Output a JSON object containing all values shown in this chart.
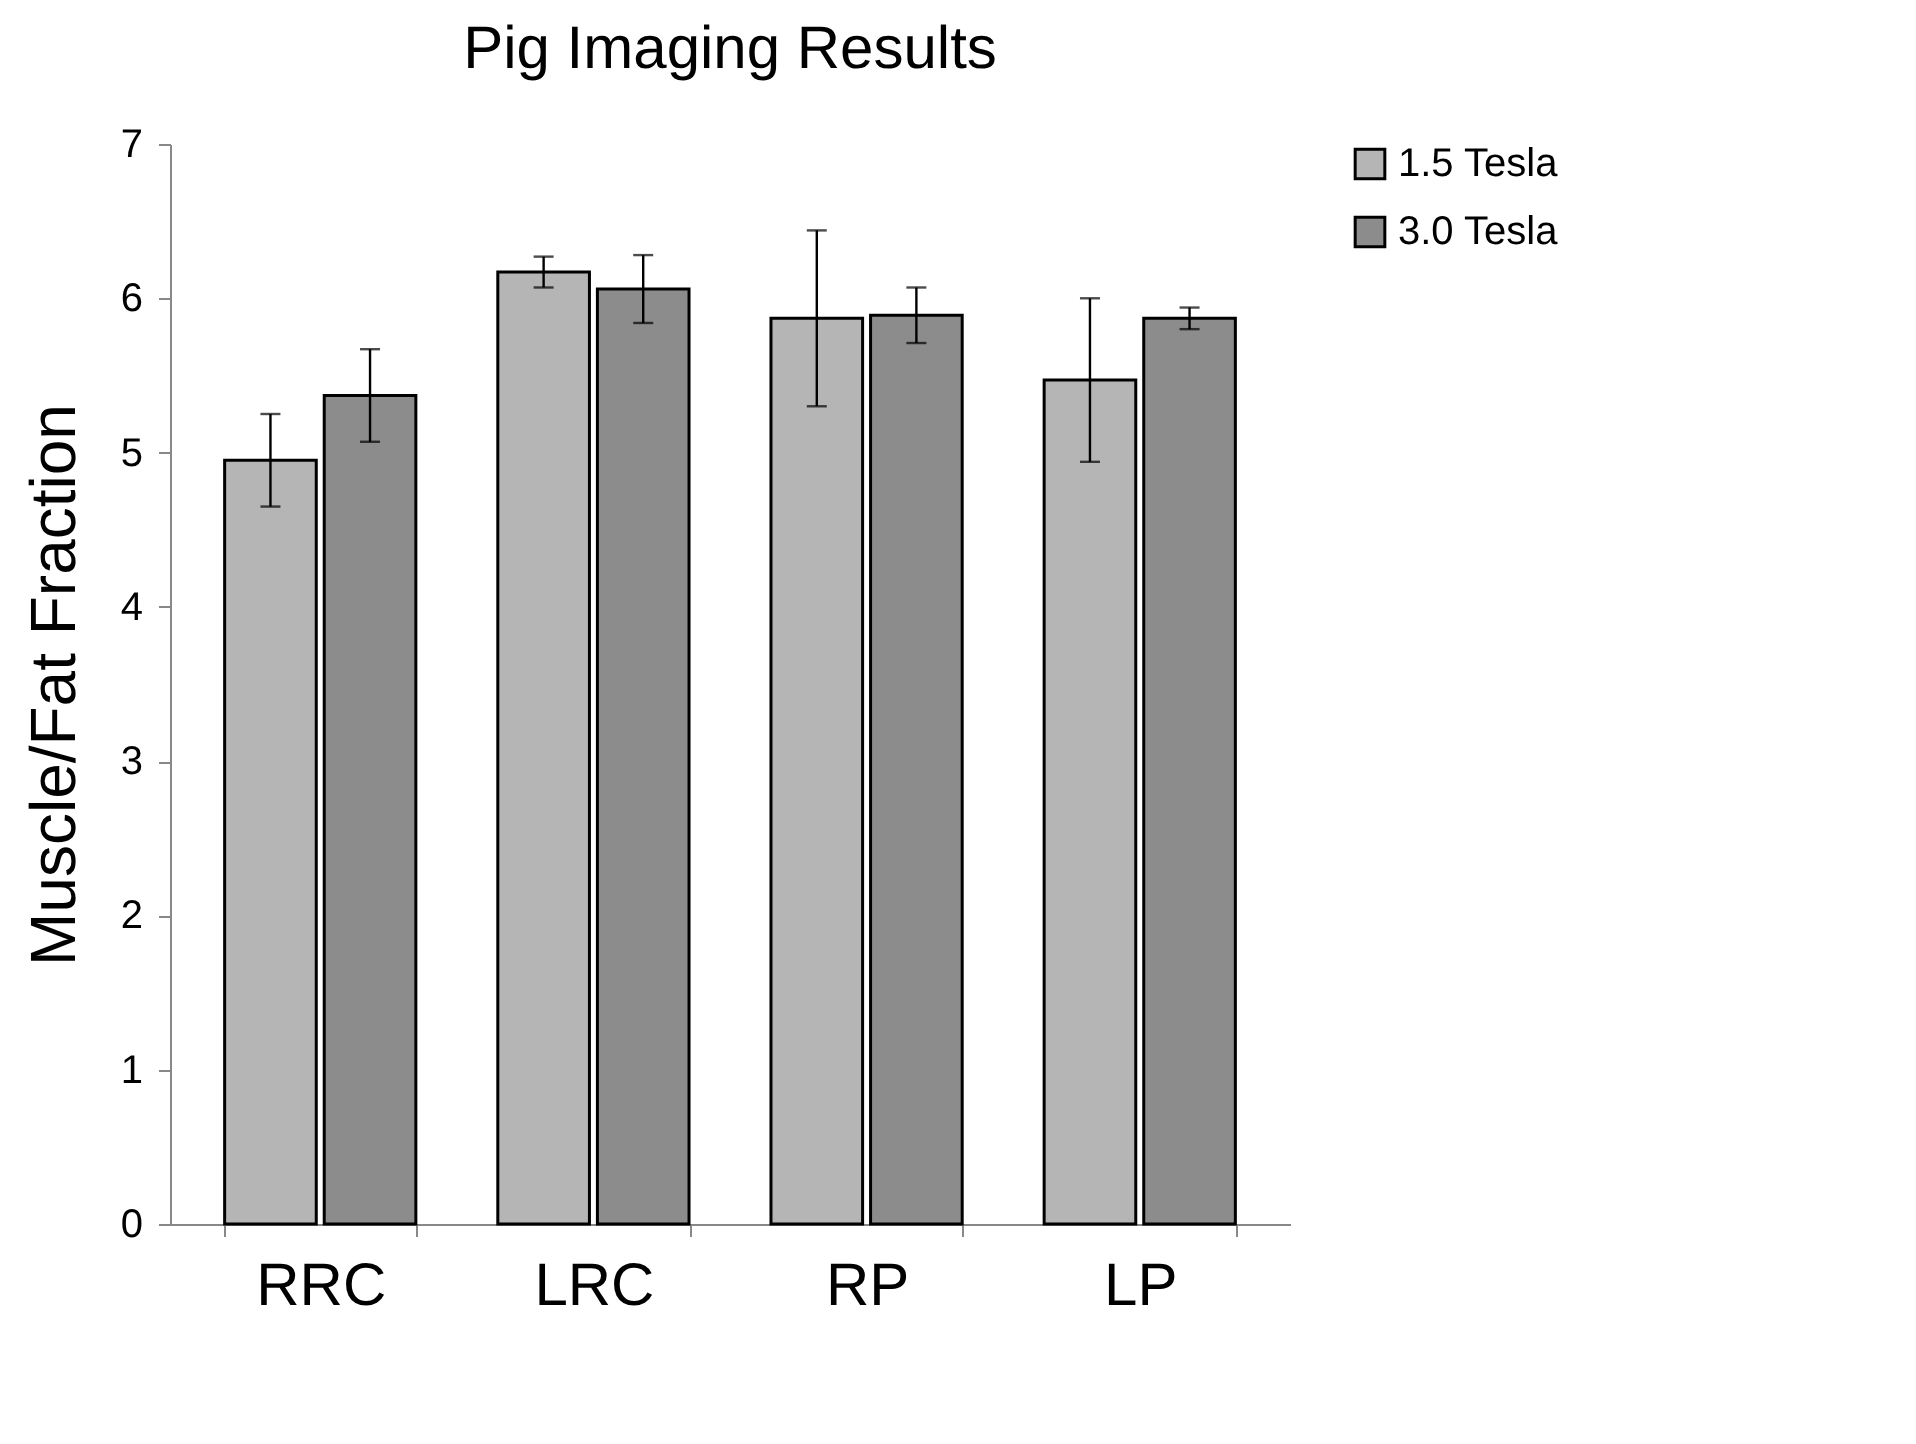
{
  "chart_data": {
    "type": "bar",
    "title": "Pig Imaging Results",
    "ylabel": "Muscle/Fat Fraction",
    "categories": [
      "RRC",
      "LRC",
      "RP",
      "LP"
    ],
    "series": [
      {
        "name": "1.5 Tesla",
        "color": "#b5b5b5",
        "values": [
          4.95,
          6.17,
          5.87,
          5.47
        ],
        "errors": [
          0.3,
          0.1,
          0.57,
          0.53
        ]
      },
      {
        "name": "3.0 Tesla",
        "color": "#8c8c8c",
        "values": [
          5.37,
          6.06,
          5.89,
          5.87
        ],
        "errors": [
          0.3,
          0.22,
          0.18,
          0.07
        ]
      }
    ],
    "ylim": [
      0,
      7
    ],
    "yticks": [
      0,
      1,
      2,
      3,
      4,
      5,
      6,
      7
    ],
    "grid": false,
    "legend": "right"
  }
}
